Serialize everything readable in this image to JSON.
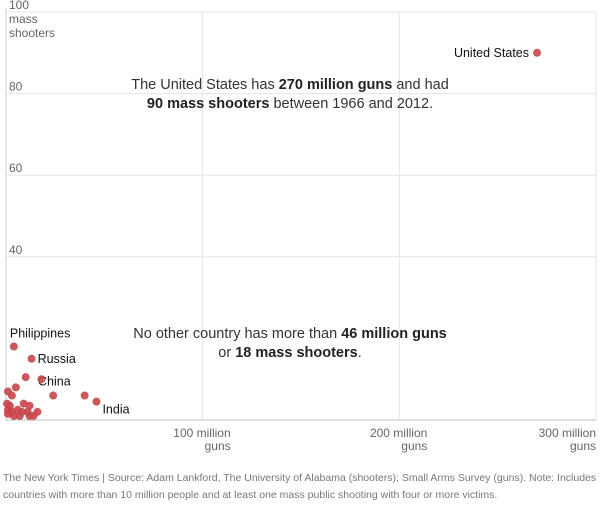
{
  "chart_data": {
    "type": "scatter",
    "title": "",
    "xlabel": "",
    "ylabel": "mass shooters",
    "xlim": [
      0,
      300
    ],
    "ylim": [
      0,
      100
    ],
    "x_ticks": [
      {
        "value": 100,
        "line1": "100 million",
        "line2": "guns"
      },
      {
        "value": 200,
        "line1": "200 million",
        "line2": "guns"
      },
      {
        "value": 300,
        "line1": "300 million",
        "line2": "guns"
      }
    ],
    "y_ticks": [
      {
        "value": 100,
        "label": "100"
      },
      {
        "value": 80,
        "label": "80"
      },
      {
        "value": 60,
        "label": "60"
      },
      {
        "value": 40,
        "label": "40"
      }
    ],
    "y_unit_line1": "mass",
    "y_unit_line2": "shooters",
    "grid": true,
    "point_color": "#c8454a",
    "points": [
      {
        "x": 270,
        "y": 90,
        "label": "United States"
      },
      {
        "x": 4,
        "y": 18,
        "label": "Philippines"
      },
      {
        "x": 13,
        "y": 15,
        "label": "Russia"
      },
      {
        "x": 40,
        "y": 6,
        "label": "China"
      },
      {
        "x": 46,
        "y": 4.5,
        "label": "India"
      },
      {
        "x": 10,
        "y": 10.5,
        "label": ""
      },
      {
        "x": 18,
        "y": 10,
        "label": ""
      },
      {
        "x": 5,
        "y": 8,
        "label": ""
      },
      {
        "x": 24,
        "y": 6,
        "label": ""
      },
      {
        "x": 1,
        "y": 7,
        "label": ""
      },
      {
        "x": 3,
        "y": 6,
        "label": ""
      },
      {
        "x": 0.5,
        "y": 4,
        "label": ""
      },
      {
        "x": 2,
        "y": 3.5,
        "label": ""
      },
      {
        "x": 9,
        "y": 4,
        "label": ""
      },
      {
        "x": 12,
        "y": 3.5,
        "label": ""
      },
      {
        "x": 1,
        "y": 2.5,
        "label": ""
      },
      {
        "x": 3,
        "y": 2,
        "label": ""
      },
      {
        "x": 6,
        "y": 2.5,
        "label": ""
      },
      {
        "x": 8,
        "y": 2,
        "label": ""
      },
      {
        "x": 11,
        "y": 2,
        "label": ""
      },
      {
        "x": 16,
        "y": 2,
        "label": ""
      },
      {
        "x": 1,
        "y": 1.5,
        "label": ""
      },
      {
        "x": 4,
        "y": 1,
        "label": ""
      },
      {
        "x": 7,
        "y": 1,
        "label": ""
      },
      {
        "x": 12,
        "y": 1,
        "label": ""
      },
      {
        "x": 14,
        "y": 1,
        "label": ""
      }
    ]
  },
  "annotations": {
    "top": {
      "pre1": "The United States has ",
      "b1": "270 million guns",
      "mid1": " and had ",
      "b2": "90 mass shooters",
      "post1": " between 1966 and 2012."
    },
    "bottom": {
      "pre1": "No other country has more than ",
      "b1": "46 million guns",
      "mid1": " or ",
      "b2": "18 mass shooters",
      "post1": "."
    }
  },
  "footer": {
    "credit": "The New York Times",
    "separator": "|",
    "source": "Source: Adam Lankford, The University of Alabama (shooters); Small Arms Survey (guns). Note: Includes countries with more than 10 million people and at least one mass public shooting with four or more victims."
  }
}
